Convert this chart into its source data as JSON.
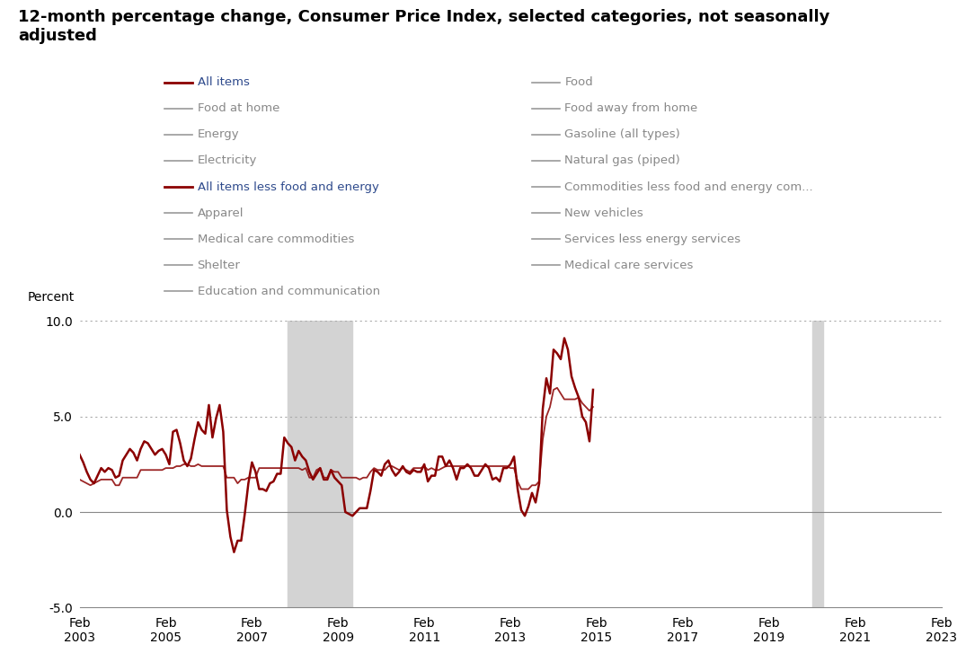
{
  "title": "12-month percentage change, Consumer Price Index, selected categories, not seasonally\nadjusted",
  "title_fontsize": 13,
  "ylabel": "Percent",
  "ylim": [
    -5.0,
    10.0
  ],
  "yticks": [
    -5.0,
    0.0,
    5.0,
    10.0
  ],
  "background_color": "#ffffff",
  "line_color_all_items": "#8B0000",
  "line_color_core": "#8B0000",
  "recession_color": "#d3d3d3",
  "grid_color": "#aaaaaa",
  "legend_items_left": [
    {
      "label": "All items",
      "color": "#8B0000",
      "bold": true,
      "highlighted": true
    },
    {
      "label": "Food at home",
      "color": "#999999",
      "bold": false,
      "highlighted": false
    },
    {
      "label": "Energy",
      "color": "#999999",
      "bold": false,
      "highlighted": false
    },
    {
      "label": "Electricity",
      "color": "#999999",
      "bold": false,
      "highlighted": false
    },
    {
      "label": "All items less food and energy",
      "color": "#8B0000",
      "bold": true,
      "highlighted": true
    },
    {
      "label": "Apparel",
      "color": "#999999",
      "bold": false,
      "highlighted": false
    },
    {
      "label": "Medical care commodities",
      "color": "#999999",
      "bold": false,
      "highlighted": false
    },
    {
      "label": "Shelter",
      "color": "#999999",
      "bold": false,
      "highlighted": false
    },
    {
      "label": "Education and communication",
      "color": "#999999",
      "bold": false,
      "highlighted": false
    }
  ],
  "legend_items_right": [
    {
      "label": "Food",
      "color": "#999999"
    },
    {
      "label": "Food away from home",
      "color": "#999999"
    },
    {
      "label": "Gasoline (all types)",
      "color": "#999999"
    },
    {
      "label": "Natural gas (piped)",
      "color": "#999999"
    },
    {
      "label": "Commodities less food and energy com...",
      "color": "#999999"
    },
    {
      "label": "New vehicles",
      "color": "#999999"
    },
    {
      "label": "Services less energy services",
      "color": "#999999"
    },
    {
      "label": "Medical care services",
      "color": "#999999"
    }
  ],
  "all_items": [
    3.0,
    2.6,
    2.1,
    1.7,
    1.5,
    1.9,
    2.3,
    2.1,
    2.3,
    2.2,
    1.8,
    1.9,
    2.7,
    3.0,
    3.3,
    3.1,
    2.7,
    3.3,
    3.7,
    3.6,
    3.3,
    3.0,
    3.2,
    3.3,
    3.0,
    2.5,
    4.2,
    4.3,
    3.6,
    2.7,
    2.4,
    2.8,
    3.8,
    4.7,
    4.3,
    4.1,
    5.6,
    3.9,
    4.9,
    5.6,
    4.2,
    0.1,
    -1.3,
    -2.1,
    -1.5,
    -1.5,
    -0.1,
    1.5,
    2.6,
    2.1,
    1.2,
    1.2,
    1.1,
    1.5,
    1.6,
    2.0,
    2.0,
    3.9,
    3.6,
    3.4,
    2.7,
    3.2,
    2.9,
    2.7,
    2.1,
    1.7,
    2.0,
    2.3,
    1.7,
    1.7,
    2.2,
    1.8,
    1.6,
    1.4,
    0.0,
    -0.1,
    -0.2,
    0.0,
    0.2,
    0.2,
    0.2,
    1.1,
    2.2,
    2.1,
    1.9,
    2.5,
    2.7,
    2.2,
    1.9,
    2.1,
    2.4,
    2.1,
    2.0,
    2.2,
    2.1,
    2.1,
    2.5,
    1.6,
    1.9,
    1.9,
    2.9,
    2.9,
    2.4,
    2.7,
    2.3,
    1.7,
    2.3,
    2.3,
    2.5,
    2.3,
    1.9,
    1.9,
    2.2,
    2.5,
    2.3,
    1.7,
    1.8,
    1.6,
    2.3,
    2.3,
    2.5,
    2.9,
    1.2,
    0.1,
    -0.2,
    0.3,
    1.0,
    0.5,
    1.5,
    5.4,
    7.0,
    6.2,
    8.5,
    8.3,
    8.0,
    9.1,
    8.5,
    7.1,
    6.5,
    6.0,
    5.0,
    4.7,
    3.7,
    6.4
  ],
  "core_items": [
    1.7,
    1.6,
    1.5,
    1.4,
    1.5,
    1.6,
    1.7,
    1.7,
    1.7,
    1.7,
    1.4,
    1.4,
    1.8,
    1.8,
    1.8,
    1.8,
    1.8,
    2.2,
    2.2,
    2.2,
    2.2,
    2.2,
    2.2,
    2.2,
    2.3,
    2.3,
    2.3,
    2.4,
    2.4,
    2.5,
    2.5,
    2.4,
    2.4,
    2.5,
    2.4,
    2.4,
    2.4,
    2.4,
    2.4,
    2.4,
    2.4,
    1.8,
    1.8,
    1.8,
    1.5,
    1.7,
    1.7,
    1.8,
    1.8,
    1.8,
    2.3,
    2.3,
    2.3,
    2.3,
    2.3,
    2.3,
    2.3,
    2.3,
    2.3,
    2.3,
    2.3,
    2.3,
    2.2,
    2.3,
    1.8,
    1.8,
    2.2,
    2.3,
    1.8,
    1.8,
    2.2,
    2.1,
    2.1,
    1.8,
    1.8,
    1.8,
    1.8,
    1.8,
    1.7,
    1.8,
    1.8,
    2.1,
    2.3,
    2.2,
    2.2,
    2.2,
    2.4,
    2.4,
    2.3,
    2.2,
    2.3,
    2.2,
    2.1,
    2.3,
    2.3,
    2.3,
    2.4,
    2.2,
    2.3,
    2.2,
    2.2,
    2.3,
    2.4,
    2.4,
    2.4,
    2.4,
    2.4,
    2.4,
    2.4,
    2.4,
    2.4,
    2.4,
    2.4,
    2.4,
    2.4,
    2.4,
    2.4,
    2.4,
    2.4,
    2.4,
    2.3,
    2.3,
    1.6,
    1.2,
    1.2,
    1.2,
    1.4,
    1.4,
    1.6,
    3.8,
    5.0,
    5.5,
    6.4,
    6.5,
    6.2,
    5.9,
    5.9,
    5.9,
    5.9,
    6.0,
    5.7,
    5.5,
    5.3,
    5.5
  ],
  "x_tick_positions": [
    0,
    24,
    48,
    72,
    96,
    120,
    144,
    168,
    192,
    216,
    240
  ],
  "x_tick_labels": [
    "Feb\n2003",
    "Feb\n2005",
    "Feb\n2007",
    "Feb\n2009",
    "Feb\n2011",
    "Feb\n2013",
    "Feb\n2015",
    "Feb\n2017",
    "Feb\n2019",
    "Feb\n2021",
    "Feb\n2023"
  ],
  "rec1_start_month": 58,
  "rec1_end_month": 76,
  "rec2_start_month": 204,
  "rec2_end_month": 207
}
